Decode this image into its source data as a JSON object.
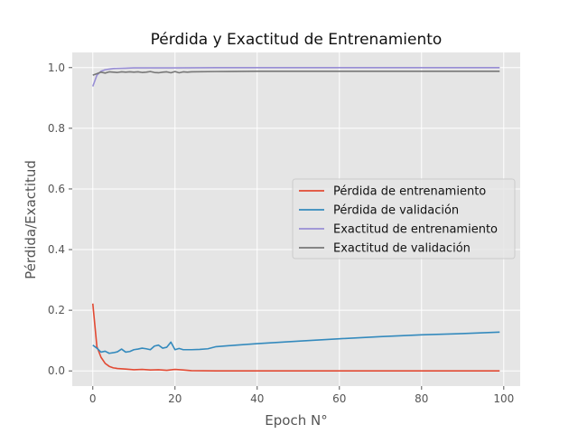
{
  "chart_data": {
    "type": "line",
    "title": "Pérdida y Exactitud de Entrenamiento",
    "xlabel": "Epoch N°",
    "ylabel": "Pérdida/Exactitud",
    "xlim": [
      -5,
      104
    ],
    "ylim": [
      -0.05,
      1.05
    ],
    "x_ticks": [
      0,
      20,
      40,
      60,
      80,
      100
    ],
    "y_ticks": [
      0.0,
      0.2,
      0.4,
      0.6,
      0.8,
      1.0
    ],
    "x_tick_labels": [
      "0",
      "20",
      "40",
      "60",
      "80",
      "100"
    ],
    "y_tick_labels": [
      "0.0",
      "0.2",
      "0.4",
      "0.6",
      "0.8",
      "1.0"
    ],
    "grid": true,
    "legend_position": "center-right",
    "series": [
      {
        "name": "Pérdida de entrenamiento",
        "color": "#E24A33",
        "x": [
          0,
          1,
          2,
          3,
          4,
          5,
          6,
          8,
          10,
          12,
          14,
          16,
          18,
          20,
          22,
          24,
          30,
          40,
          50,
          60,
          70,
          80,
          90,
          99
        ],
        "y": [
          0.222,
          0.08,
          0.045,
          0.025,
          0.015,
          0.01,
          0.008,
          0.006,
          0.004,
          0.005,
          0.003,
          0.004,
          0.002,
          0.005,
          0.003,
          0.001,
          0.0,
          0.0,
          0.0,
          0.0,
          0.0,
          0.0,
          0.0,
          0.0
        ]
      },
      {
        "name": "Pérdida de validación",
        "color": "#348ABD",
        "x": [
          0,
          1,
          2,
          3,
          4,
          5,
          6,
          7,
          8,
          9,
          10,
          11,
          12,
          13,
          14,
          15,
          16,
          17,
          18,
          19,
          20,
          21,
          22,
          23,
          24,
          26,
          28,
          30,
          35,
          40,
          50,
          60,
          70,
          80,
          90,
          99
        ],
        "y": [
          0.085,
          0.075,
          0.062,
          0.065,
          0.058,
          0.06,
          0.063,
          0.072,
          0.062,
          0.064,
          0.07,
          0.072,
          0.075,
          0.073,
          0.07,
          0.082,
          0.085,
          0.075,
          0.078,
          0.095,
          0.07,
          0.074,
          0.07,
          0.07,
          0.07,
          0.071,
          0.073,
          0.08,
          0.085,
          0.09,
          0.098,
          0.106,
          0.113,
          0.119,
          0.123,
          0.128
        ]
      },
      {
        "name": "Exactitud de entrenamiento",
        "color": "#988ED5",
        "x": [
          0,
          1,
          2,
          3,
          4,
          5,
          8,
          10,
          15,
          20,
          30,
          40,
          60,
          80,
          99
        ],
        "y": [
          0.938,
          0.975,
          0.988,
          0.993,
          0.995,
          0.997,
          0.998,
          0.999,
          0.999,
          0.999,
          1.0,
          1.0,
          1.0,
          1.0,
          1.0
        ]
      },
      {
        "name": "Exactitud de validación",
        "color": "#777777",
        "x": [
          0,
          1,
          2,
          3,
          4,
          5,
          6,
          7,
          8,
          9,
          10,
          11,
          12,
          13,
          14,
          15,
          16,
          17,
          18,
          19,
          20,
          21,
          22,
          23,
          24,
          30,
          40,
          60,
          80,
          99
        ],
        "y": [
          0.975,
          0.98,
          0.985,
          0.982,
          0.986,
          0.985,
          0.984,
          0.986,
          0.985,
          0.986,
          0.985,
          0.986,
          0.984,
          0.985,
          0.987,
          0.984,
          0.983,
          0.985,
          0.986,
          0.983,
          0.987,
          0.983,
          0.986,
          0.985,
          0.986,
          0.987,
          0.988,
          0.988,
          0.988,
          0.988
        ]
      }
    ]
  }
}
